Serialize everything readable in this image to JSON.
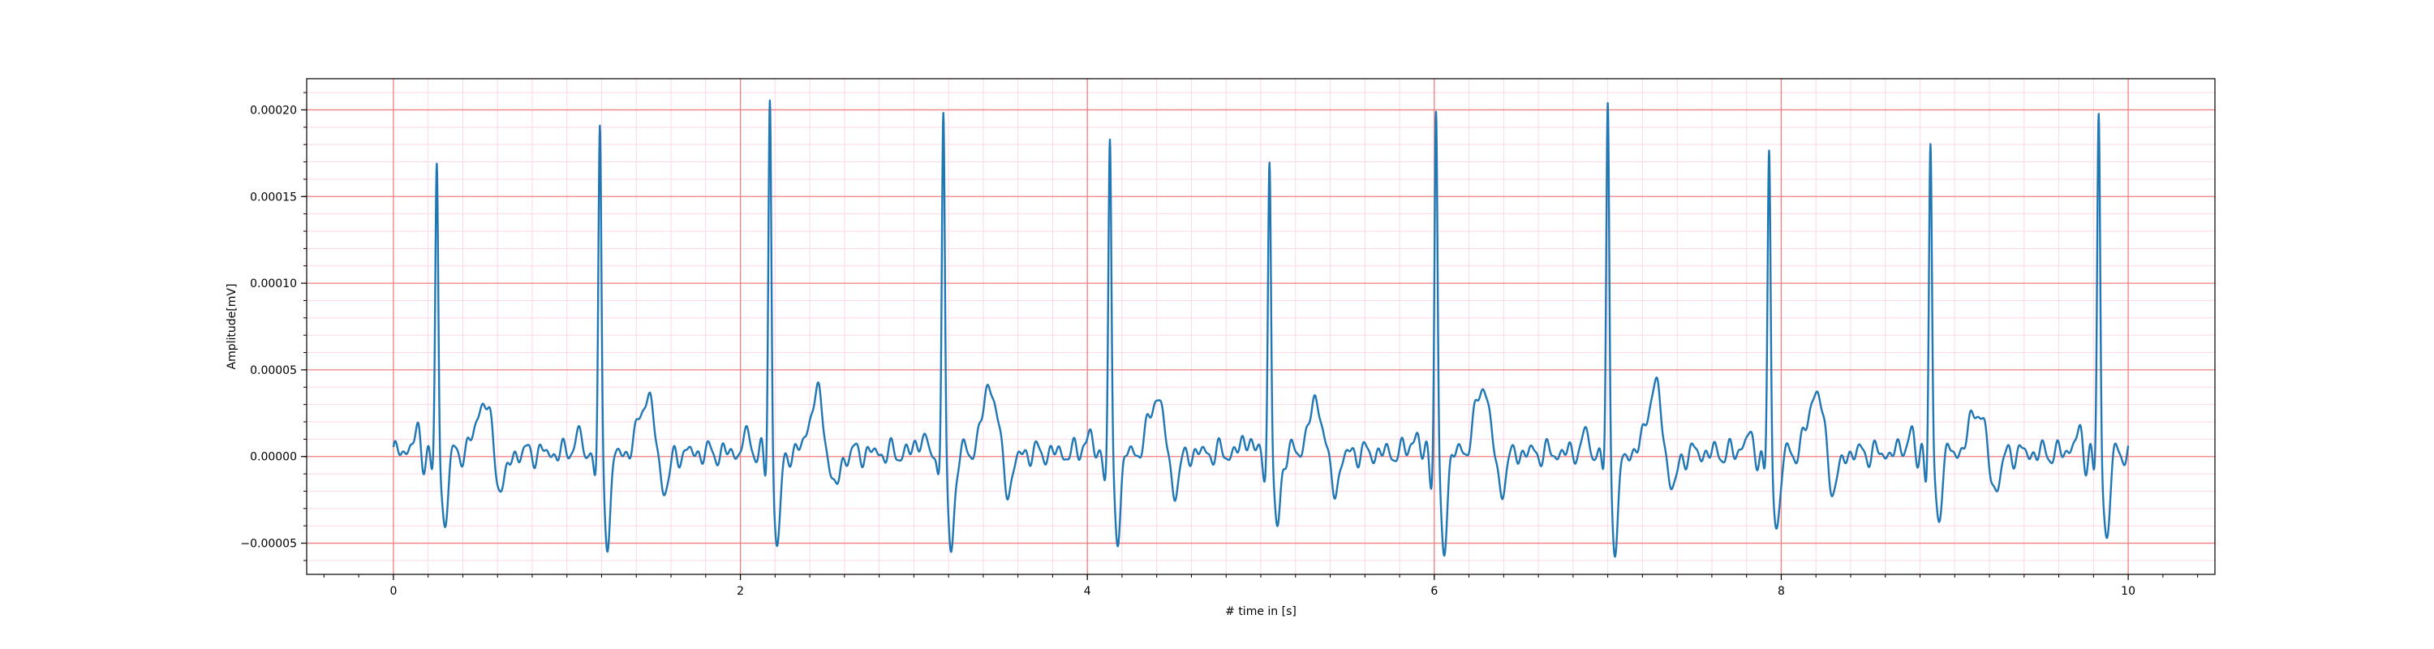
{
  "chart_data": {
    "type": "line",
    "title": "",
    "xlabel": "# time in [s]",
    "ylabel": "Amplitude[mV]",
    "xlim": [
      -0.5,
      10.5
    ],
    "ylim": [
      -6.8e-05,
      0.000218
    ],
    "x_ticks": [
      0,
      2,
      4,
      6,
      8,
      10
    ],
    "x_tick_labels": [
      "0",
      "2",
      "4",
      "6",
      "8",
      "10"
    ],
    "y_ticks": [
      -5e-05,
      0,
      5e-05,
      0.0001,
      0.00015,
      0.0002
    ],
    "y_tick_labels": [
      "−0.00005",
      "0.00000",
      "0.00005",
      "0.00010",
      "0.00015",
      "0.00020"
    ],
    "grid": {
      "major": true,
      "minor": true,
      "major_color": "#f08080",
      "minor_color": "#ffd6e6"
    },
    "line_color": "#1f77b4",
    "background_level": 2e-06,
    "beats": [
      {
        "t": 0.25,
        "r": 0.000169,
        "s": -4e-05,
        "t_wave": 3e-05
      },
      {
        "t": 1.19,
        "r": 0.000186,
        "s": -4.8e-05,
        "t_wave": 3.3e-05
      },
      {
        "t": 2.17,
        "r": 0.000204,
        "s": -5.2e-05,
        "t_wave": 3.3e-05
      },
      {
        "t": 3.17,
        "r": 0.000198,
        "s": -5.6e-05,
        "t_wave": 3.9e-05
      },
      {
        "t": 4.13,
        "r": 0.000178,
        "s": -4.6e-05,
        "t_wave": 3.3e-05
      },
      {
        "t": 5.05,
        "r": 0.00017,
        "s": -4.3e-05,
        "t_wave": 2.9e-05
      },
      {
        "t": 6.01,
        "r": 0.000195,
        "s": -5.5e-05,
        "t_wave": 3.9e-05
      },
      {
        "t": 7.0,
        "r": 0.000202,
        "s": -5.4e-05,
        "t_wave": 3.8e-05
      },
      {
        "t": 7.93,
        "r": 0.000173,
        "s": -4.3e-05,
        "t_wave": 3.6e-05
      },
      {
        "t": 8.86,
        "r": 0.000177,
        "s": -3.7e-05,
        "t_wave": 2.6e-05
      },
      {
        "t": 9.83,
        "r": 0.000197,
        "s": -4.8e-05,
        "t_wave": 1.3e-05
      }
    ]
  }
}
